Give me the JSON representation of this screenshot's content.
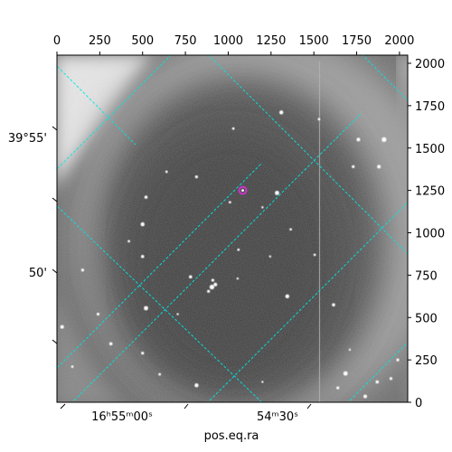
{
  "chart_data": {
    "type": "scatter",
    "title": "",
    "xlabel": "pos.eq.ra",
    "ylabel": "",
    "pixel_axes": {
      "x_range": [
        0,
        2048
      ],
      "y_range": [
        0,
        2048
      ],
      "x_ticks": [
        "0",
        "250",
        "500",
        "750",
        "1000",
        "1250",
        "1500",
        "1750",
        "2000"
      ],
      "y_ticks": [
        "0",
        "250",
        "500",
        "750",
        "1000",
        "1250",
        "1500",
        "1750",
        "2000"
      ]
    },
    "world_axes": {
      "ra_ticks": [
        "16ʰ55ᵐ00ˢ",
        "54ᵐ30ˢ"
      ],
      "dec_ticks": [
        "39°55'",
        "50'"
      ]
    },
    "grid": true,
    "grid_color": "#00e5e5",
    "image_colormap": "gray",
    "highlight_marker": {
      "x": 1085,
      "y": 1250,
      "color": "#cc33cc"
    },
    "stars": [
      {
        "x": 1310,
        "y": 1710,
        "m": 2.2
      },
      {
        "x": 1530,
        "y": 1670,
        "m": 1.4
      },
      {
        "x": 1760,
        "y": 1550,
        "m": 2.0
      },
      {
        "x": 1910,
        "y": 1550,
        "m": 2.6
      },
      {
        "x": 1730,
        "y": 1390,
        "m": 1.6
      },
      {
        "x": 1880,
        "y": 1390,
        "m": 2.0
      },
      {
        "x": 640,
        "y": 1360,
        "m": 1.4
      },
      {
        "x": 815,
        "y": 1330,
        "m": 1.6
      },
      {
        "x": 1285,
        "y": 1235,
        "m": 2.4
      },
      {
        "x": 520,
        "y": 1210,
        "m": 1.8
      },
      {
        "x": 1010,
        "y": 1180,
        "m": 1.4
      },
      {
        "x": 1200,
        "y": 1150,
        "m": 1.2
      },
      {
        "x": 500,
        "y": 1050,
        "m": 2.2
      },
      {
        "x": 1365,
        "y": 1020,
        "m": 1.4
      },
      {
        "x": 1060,
        "y": 900,
        "m": 1.4
      },
      {
        "x": 500,
        "y": 860,
        "m": 1.8
      },
      {
        "x": 1505,
        "y": 870,
        "m": 1.4
      },
      {
        "x": 150,
        "y": 780,
        "m": 1.6
      },
      {
        "x": 780,
        "y": 740,
        "m": 1.8
      },
      {
        "x": 910,
        "y": 720,
        "m": 1.6
      },
      {
        "x": 905,
        "y": 680,
        "m": 2.6
      },
      {
        "x": 925,
        "y": 695,
        "m": 2.0
      },
      {
        "x": 885,
        "y": 655,
        "m": 1.6
      },
      {
        "x": 1055,
        "y": 730,
        "m": 1.2
      },
      {
        "x": 1345,
        "y": 625,
        "m": 2.2
      },
      {
        "x": 1615,
        "y": 575,
        "m": 1.8
      },
      {
        "x": 520,
        "y": 555,
        "m": 2.4
      },
      {
        "x": 240,
        "y": 520,
        "m": 1.6
      },
      {
        "x": 30,
        "y": 445,
        "m": 2.0
      },
      {
        "x": 315,
        "y": 345,
        "m": 1.8
      },
      {
        "x": 500,
        "y": 290,
        "m": 1.6
      },
      {
        "x": 1710,
        "y": 310,
        "m": 1.2
      },
      {
        "x": 1685,
        "y": 170,
        "m": 2.4
      },
      {
        "x": 600,
        "y": 165,
        "m": 1.4
      },
      {
        "x": 815,
        "y": 100,
        "m": 2.2
      },
      {
        "x": 1640,
        "y": 85,
        "m": 1.6
      },
      {
        "x": 1870,
        "y": 120,
        "m": 1.8
      },
      {
        "x": 1950,
        "y": 140,
        "m": 1.6
      },
      {
        "x": 1800,
        "y": 35,
        "m": 2.0
      },
      {
        "x": 1200,
        "y": 120,
        "m": 1.2
      },
      {
        "x": 1030,
        "y": 1615,
        "m": 1.4
      },
      {
        "x": 420,
        "y": 950,
        "m": 1.4
      },
      {
        "x": 705,
        "y": 520,
        "m": 1.2
      },
      {
        "x": 1245,
        "y": 860,
        "m": 1.2
      },
      {
        "x": 90,
        "y": 210,
        "m": 1.4
      },
      {
        "x": 1990,
        "y": 250,
        "m": 1.6
      }
    ]
  }
}
